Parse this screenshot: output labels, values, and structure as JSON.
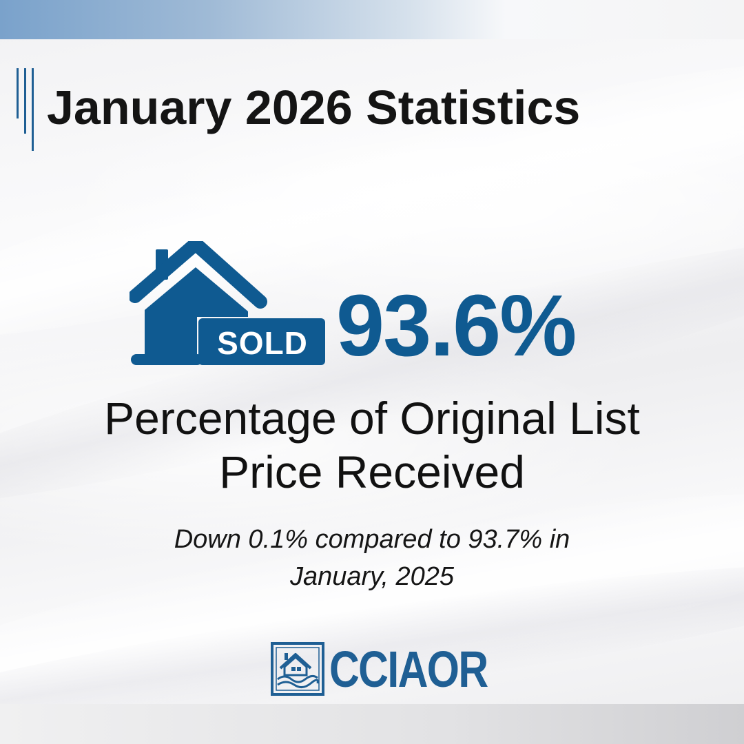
{
  "header": {
    "title": "January 2026 Statistics"
  },
  "stat": {
    "badge_label": "SOLD",
    "value": "93.6%",
    "label_line1": "Percentage of Original List",
    "label_line2": "Price Received",
    "comparison_line1": "Down 0.1% compared to 93.7% in",
    "comparison_line2": "January, 2025"
  },
  "branding": {
    "logo_text": "CCIAOR"
  },
  "icons": {
    "house": "house-sold-icon",
    "logo": "cciaor-logo-mark-icon"
  },
  "colors": {
    "brand_blue": "#0f5a91",
    "accent_blue": "#1f5f94",
    "title_text": "#141414"
  }
}
